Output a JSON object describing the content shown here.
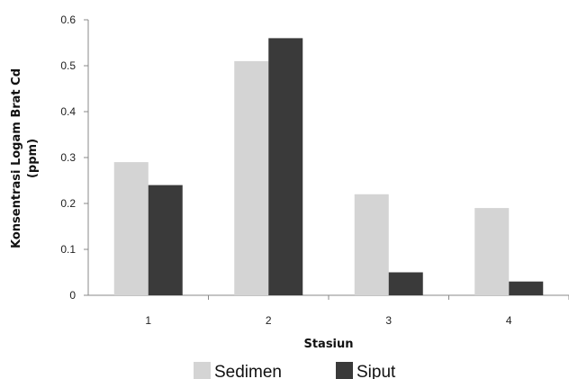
{
  "chart_data": {
    "type": "bar",
    "categories": [
      "1",
      "2",
      "3",
      "4"
    ],
    "series": [
      {
        "name": "Sedimen",
        "values": [
          0.29,
          0.51,
          0.22,
          0.19
        ],
        "color": "#d4d4d4"
      },
      {
        "name": "Siput",
        "values": [
          0.24,
          0.56,
          0.05,
          0.03
        ],
        "color": "#3a3a3a"
      }
    ],
    "title": "",
    "xlabel": "Stasiun",
    "ylabel_lines": [
      "Konsentrasi  Logam Brat Cd",
      "(ppm)"
    ],
    "ylim": [
      0,
      0.6
    ],
    "yticks": [
      "0",
      "0.1",
      "0.2",
      "0.3",
      "0.4",
      "0.5",
      "0.6"
    ],
    "grid": false,
    "legend_position": "bottom"
  }
}
